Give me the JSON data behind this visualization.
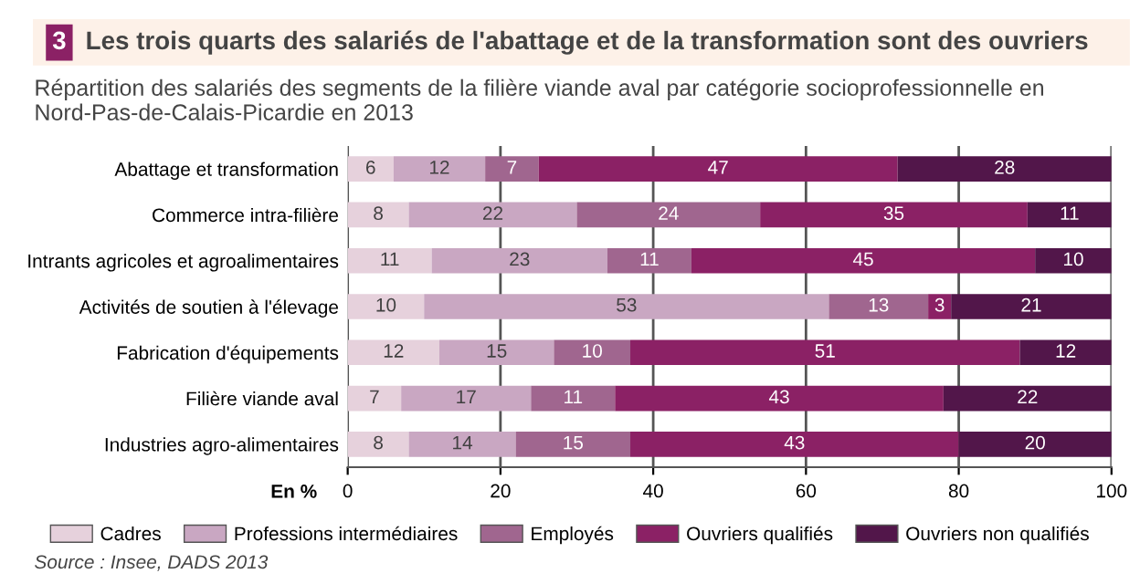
{
  "chart_data": {
    "type": "bar",
    "orientation": "horizontal",
    "stacked": true,
    "title": "Les trois quarts des salariés de l'abattage et de la transformation sont des ouvriers",
    "subtitle": "Répartition des salariés des segments de la filière viande aval par catégorie socioprofessionnelle en Nord-Pas-de-Calais-Picardie en 2013",
    "xlabel": "En %",
    "annotations": [
      "3",
      "Source : Insee, DADS 2013"
    ],
    "categories": [
      "Abattage et transformation",
      "Commerce intra-filière",
      "Intrants agricoles et agroalimentaires",
      "Activités de soutien à l'élevage",
      "Fabrication d'équipements",
      "Filière viande aval",
      "Industries agro-alimentaires"
    ],
    "series": [
      {
        "name": "Cadres",
        "color": "#e6d1dc",
        "values": [
          6,
          8,
          11,
          10,
          12,
          7,
          8
        ]
      },
      {
        "name": "Professions intermédiaires",
        "color": "#c9a7c2",
        "values": [
          12,
          22,
          23,
          53,
          15,
          17,
          14
        ]
      },
      {
        "name": "Employés",
        "color": "#a0668f",
        "values": [
          7,
          24,
          11,
          13,
          10,
          11,
          15
        ]
      },
      {
        "name": "Ouvriers qualifiés",
        "color": "#8b2165",
        "values": [
          47,
          35,
          45,
          3,
          51,
          43,
          43
        ]
      },
      {
        "name": "Ouvriers non qualifiés",
        "color": "#52164a",
        "values": [
          28,
          11,
          10,
          21,
          12,
          22,
          20
        ]
      }
    ],
    "xlim": [
      0,
      100
    ],
    "xticks": [
      0,
      20,
      40,
      60,
      80,
      100
    ],
    "grid": "x",
    "legend": "bottom",
    "data_labels": true
  }
}
